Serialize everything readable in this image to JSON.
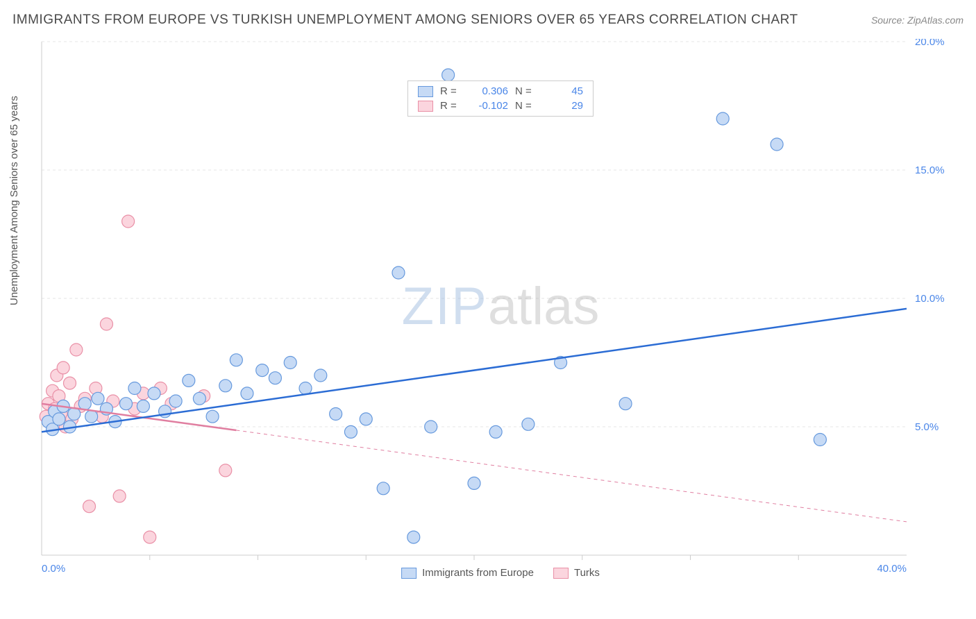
{
  "title": "IMMIGRANTS FROM EUROPE VS TURKISH UNEMPLOYMENT AMONG SENIORS OVER 65 YEARS CORRELATION CHART",
  "source": "Source: ZipAtlas.com",
  "y_axis_label": "Unemployment Among Seniors over 65 years",
  "watermark_a": "ZIP",
  "watermark_b": "atlas",
  "chart": {
    "type": "scatter",
    "xlim": [
      0,
      40
    ],
    "ylim": [
      0,
      20
    ],
    "x_ticks_major_labeled": [
      0,
      40
    ],
    "x_ticks_minor": [
      5,
      10,
      15,
      20,
      25,
      30,
      35
    ],
    "y_ticks": [
      5,
      10,
      15,
      20
    ],
    "tick_suffix": "%",
    "background_color": "#ffffff",
    "grid_color": "#e6e6e6",
    "axis_color": "#cccccc",
    "tick_label_color": "#4a86e8",
    "marker_radius": 9,
    "marker_stroke_width": 1.2,
    "trend_line_width": 2.5,
    "series": {
      "europe": {
        "label": "Immigrants from Europe",
        "fill": "#c6daf5",
        "stroke": "#6699dd",
        "trend_color": "#2b6cd4",
        "R": "0.306",
        "N": "45",
        "trend_y_at_x0": 4.8,
        "trend_y_at_x40": 9.6,
        "trend_solid_until_x": 40,
        "points": [
          [
            0.3,
            5.2
          ],
          [
            0.5,
            4.9
          ],
          [
            0.6,
            5.6
          ],
          [
            0.8,
            5.3
          ],
          [
            1.0,
            5.8
          ],
          [
            1.3,
            5.0
          ],
          [
            1.5,
            5.5
          ],
          [
            2.0,
            5.9
          ],
          [
            2.3,
            5.4
          ],
          [
            2.6,
            6.1
          ],
          [
            3.0,
            5.7
          ],
          [
            3.4,
            5.2
          ],
          [
            3.9,
            5.9
          ],
          [
            4.3,
            6.5
          ],
          [
            4.7,
            5.8
          ],
          [
            5.2,
            6.3
          ],
          [
            5.7,
            5.6
          ],
          [
            6.2,
            6.0
          ],
          [
            6.8,
            6.8
          ],
          [
            7.3,
            6.1
          ],
          [
            7.9,
            5.4
          ],
          [
            8.5,
            6.6
          ],
          [
            9.0,
            7.6
          ],
          [
            9.5,
            6.3
          ],
          [
            10.2,
            7.2
          ],
          [
            10.8,
            6.9
          ],
          [
            11.5,
            7.5
          ],
          [
            12.2,
            6.5
          ],
          [
            12.9,
            7.0
          ],
          [
            13.6,
            5.5
          ],
          [
            14.3,
            4.8
          ],
          [
            15.0,
            5.3
          ],
          [
            15.8,
            2.6
          ],
          [
            16.5,
            11.0
          ],
          [
            17.2,
            0.7
          ],
          [
            18.0,
            5.0
          ],
          [
            18.8,
            18.7
          ],
          [
            20.0,
            2.8
          ],
          [
            21.0,
            4.8
          ],
          [
            22.5,
            5.1
          ],
          [
            24.0,
            7.5
          ],
          [
            27.0,
            5.9
          ],
          [
            31.5,
            17.0
          ],
          [
            34.0,
            16.0
          ],
          [
            36.0,
            4.5
          ]
        ]
      },
      "turks": {
        "label": "Turks",
        "fill": "#fbd5de",
        "stroke": "#e98fa6",
        "trend_color": "#e07ea0",
        "R": "-0.102",
        "N": "29",
        "trend_y_at_x0": 5.9,
        "trend_y_at_x40": 1.3,
        "trend_solid_until_x": 9,
        "points": [
          [
            0.2,
            5.4
          ],
          [
            0.3,
            5.9
          ],
          [
            0.4,
            5.2
          ],
          [
            0.5,
            6.4
          ],
          [
            0.6,
            5.7
          ],
          [
            0.7,
            7.0
          ],
          [
            0.8,
            6.2
          ],
          [
            0.9,
            5.5
          ],
          [
            1.0,
            7.3
          ],
          [
            1.1,
            5.0
          ],
          [
            1.3,
            6.7
          ],
          [
            1.4,
            5.3
          ],
          [
            1.6,
            8.0
          ],
          [
            1.8,
            5.8
          ],
          [
            2.0,
            6.1
          ],
          [
            2.2,
            1.9
          ],
          [
            2.5,
            6.5
          ],
          [
            2.8,
            5.4
          ],
          [
            3.0,
            9.0
          ],
          [
            3.3,
            6.0
          ],
          [
            3.6,
            2.3
          ],
          [
            4.0,
            13.0
          ],
          [
            4.3,
            5.7
          ],
          [
            4.7,
            6.3
          ],
          [
            5.0,
            0.7
          ],
          [
            5.5,
            6.5
          ],
          [
            6.0,
            5.9
          ],
          [
            7.5,
            6.2
          ],
          [
            8.5,
            3.3
          ]
        ]
      }
    }
  },
  "legend_value_color": "#4a86e8",
  "colors": {
    "title_text": "#4a4a4a",
    "source_text": "#888888",
    "axis_label_text": "#555555"
  }
}
